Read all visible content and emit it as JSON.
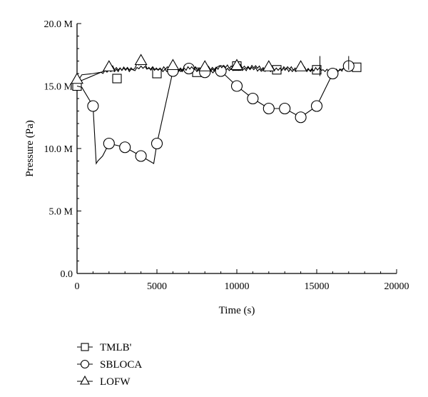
{
  "chart_data": {
    "type": "line",
    "title": "",
    "xlabel": "Time (s)",
    "ylabel": "Pressure (Pa)",
    "xlim": [
      0,
      20000
    ],
    "ylim": [
      0,
      20000000
    ],
    "x_ticks": [
      0,
      5000,
      10000,
      15000,
      20000
    ],
    "x_tick_labels": [
      "0",
      "5000",
      "10000",
      "15000",
      "20000"
    ],
    "y_ticks": [
      0,
      5000000,
      10000000,
      15000000,
      20000000
    ],
    "y_tick_labels": [
      "0.0",
      "5.0 M",
      "10.0 M",
      "15.0 M",
      "20.0 M"
    ],
    "grid": false,
    "legend_position": "bottom-left, below the axes",
    "series": [
      {
        "name": "TMLB'",
        "marker": "square",
        "line_x": [
          0,
          300,
          1000,
          1500,
          2000,
          3500,
          4000,
          5000,
          6000,
          8000,
          10000,
          12000,
          15400,
          16000,
          17500
        ],
        "line_y": [
          15.3,
          15.9,
          16.0,
          16.1,
          16.3,
          16.3,
          16.6,
          16.3,
          16.3,
          16.3,
          16.4,
          16.3,
          16.3,
          16.3,
          16.4
        ],
        "markers_x": [
          0,
          2500,
          5000,
          7500,
          10000,
          12500,
          15000,
          17500
        ],
        "markers_y": [
          15.0,
          15.6,
          16.0,
          16.1,
          16.6,
          16.3,
          16.3,
          16.5
        ],
        "units_y": "MPa"
      },
      {
        "name": "SBLOCA",
        "marker": "circle",
        "line_x": [
          0,
          300,
          1000,
          1200,
          1300,
          1600,
          2000,
          3000,
          4000,
          4800,
          5000,
          6000,
          7000,
          8000,
          9000,
          10000,
          11000,
          12000,
          13000,
          14000,
          15000,
          16000,
          17000
        ],
        "line_y": [
          15.0,
          14.9,
          13.4,
          8.8,
          9.0,
          9.4,
          10.4,
          10.1,
          9.4,
          8.8,
          10.4,
          16.2,
          16.4,
          16.2,
          16.2,
          15.0,
          14.0,
          13.2,
          13.2,
          12.5,
          13.4,
          16.0,
          16.6
        ],
        "markers_x": [
          1000,
          2000,
          3000,
          4000,
          5000,
          6000,
          7000,
          8000,
          9000,
          10000,
          11000,
          12000,
          13000,
          14000,
          15000,
          16000,
          17000
        ],
        "markers_y": [
          13.4,
          10.4,
          10.1,
          9.4,
          10.4,
          16.2,
          16.4,
          16.1,
          16.2,
          15.0,
          14.0,
          13.2,
          13.2,
          12.5,
          13.4,
          16.0,
          16.6
        ],
        "units_y": "MPa"
      },
      {
        "name": "LOFW",
        "marker": "triangle",
        "line_x": [
          0,
          200,
          1500,
          2000,
          3500,
          4000,
          4500,
          6000,
          8000,
          10000,
          12000,
          14000,
          15400
        ],
        "line_y": [
          15.8,
          15.4,
          16.1,
          16.5,
          16.3,
          17.0,
          16.4,
          16.4,
          16.4,
          16.6,
          16.4,
          16.4,
          16.3
        ],
        "markers_x": [
          0,
          2000,
          4000,
          6000,
          8000,
          10000,
          12000,
          14000
        ],
        "markers_y": [
          15.5,
          16.5,
          17.0,
          16.6,
          16.5,
          16.6,
          16.5,
          16.5
        ],
        "units_y": "MPa"
      }
    ]
  }
}
